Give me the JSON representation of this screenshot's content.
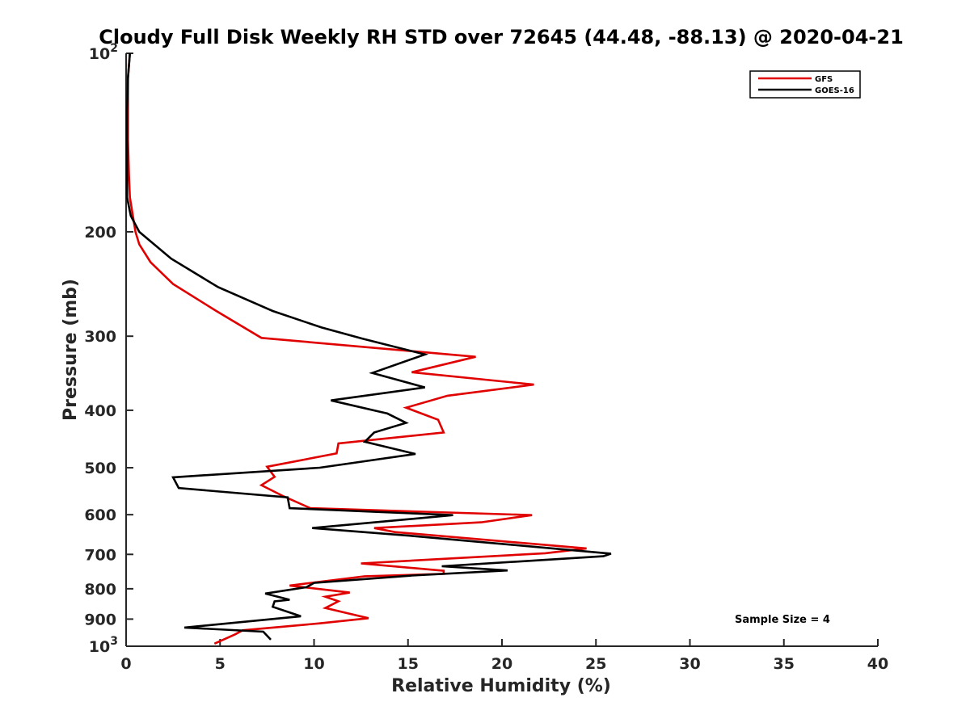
{
  "chart_data": {
    "type": "line",
    "title": "Cloudy Full Disk Weekly RH STD over 72645 (44.48, -88.13) @ 2020-04-21",
    "xlabel": "Relative Humidity (%)",
    "ylabel": "Pressure (mb)",
    "xlim": [
      0,
      40
    ],
    "ylim": [
      100,
      1000
    ],
    "y_scale": "log",
    "y_reversed": true,
    "x_ticks": [
      "0",
      "5",
      "10",
      "15",
      "20",
      "25",
      "30",
      "35",
      "40"
    ],
    "y_ticks": [
      {
        "value": 100,
        "base": "10",
        "exp": "2"
      },
      {
        "value": 200,
        "label": "200"
      },
      {
        "value": 300,
        "label": "300"
      },
      {
        "value": 400,
        "label": "400"
      },
      {
        "value": 500,
        "label": "500"
      },
      {
        "value": 600,
        "label": "600"
      },
      {
        "value": 700,
        "label": "700"
      },
      {
        "value": 800,
        "label": "800"
      },
      {
        "value": 900,
        "label": "900"
      },
      {
        "value": 1000,
        "base": "10",
        "exp": "3"
      }
    ],
    "grid": false,
    "legend_position": "top-right",
    "annotation": "Sample Size = 4",
    "series": [
      {
        "name": "GFS",
        "color": "#e00000",
        "points": [
          [
            0.2,
            100
          ],
          [
            0.1,
            110
          ],
          [
            0.1,
            125
          ],
          [
            0.1,
            140
          ],
          [
            0.15,
            160
          ],
          [
            0.2,
            175
          ],
          [
            0.35,
            187
          ],
          [
            0.5,
            200
          ],
          [
            0.7,
            210
          ],
          [
            1.3,
            225
          ],
          [
            2.5,
            245
          ],
          [
            4.8,
            272
          ],
          [
            7.2,
            302
          ],
          [
            18.6,
            325
          ],
          [
            15.2,
            345
          ],
          [
            21.7,
            362
          ],
          [
            17.1,
            378
          ],
          [
            14.9,
            396
          ],
          [
            16.6,
            415
          ],
          [
            16.9,
            436
          ],
          [
            11.3,
            455
          ],
          [
            11.2,
            473
          ],
          [
            7.5,
            498
          ],
          [
            7.9,
            518
          ],
          [
            7.2,
            535
          ],
          [
            8.3,
            557
          ],
          [
            9.8,
            585
          ],
          [
            21.6,
            601
          ],
          [
            18.9,
            618
          ],
          [
            13.2,
            632
          ],
          [
            14.3,
            642
          ],
          [
            24.5,
            684
          ],
          [
            22.3,
            697
          ],
          [
            12.5,
            725
          ],
          [
            16.9,
            746
          ],
          [
            16.9,
            755
          ],
          [
            12.7,
            762
          ],
          [
            8.7,
            790
          ],
          [
            11.9,
            812
          ],
          [
            10.6,
            825
          ],
          [
            11.3,
            840
          ],
          [
            10.6,
            862
          ],
          [
            12.9,
            897
          ],
          [
            10.3,
            915
          ],
          [
            6.2,
            940
          ],
          [
            5.8,
            955
          ],
          [
            4.7,
            990
          ]
        ]
      },
      {
        "name": "GOES-16",
        "color": "#000000",
        "points": [
          [
            0.2,
            100
          ],
          [
            0.1,
            110
          ],
          [
            0.05,
            125
          ],
          [
            0.05,
            140
          ],
          [
            0.05,
            160
          ],
          [
            0.05,
            175
          ],
          [
            0.25,
            188
          ],
          [
            0.7,
            200
          ],
          [
            2.4,
            222
          ],
          [
            4.9,
            248
          ],
          [
            7.8,
            272
          ],
          [
            10.4,
            290
          ],
          [
            12.6,
            303
          ],
          [
            15.9,
            322
          ],
          [
            13.1,
            346
          ],
          [
            15.9,
            366
          ],
          [
            10.9,
            385
          ],
          [
            13.9,
            405
          ],
          [
            14.9,
            420
          ],
          [
            13.2,
            436
          ],
          [
            12.7,
            452
          ],
          [
            15.4,
            474
          ],
          [
            10.3,
            500
          ],
          [
            2.5,
            519
          ],
          [
            2.8,
            541
          ],
          [
            8.6,
            561
          ],
          [
            8.7,
            585
          ],
          [
            17.4,
            601
          ],
          [
            9.9,
            632
          ],
          [
            15.1,
            651
          ],
          [
            25.8,
            698
          ],
          [
            25.4,
            705
          ],
          [
            16.8,
            733
          ],
          [
            20.3,
            745
          ],
          [
            15.2,
            760
          ],
          [
            10.0,
            782
          ],
          [
            9.6,
            795
          ],
          [
            7.4,
            815
          ],
          [
            8.7,
            835
          ],
          [
            7.9,
            840
          ],
          [
            7.8,
            858
          ],
          [
            9.3,
            890
          ],
          [
            3.1,
            930
          ],
          [
            7.3,
            945
          ],
          [
            7.5,
            960
          ],
          [
            7.7,
            975
          ]
        ]
      }
    ]
  }
}
